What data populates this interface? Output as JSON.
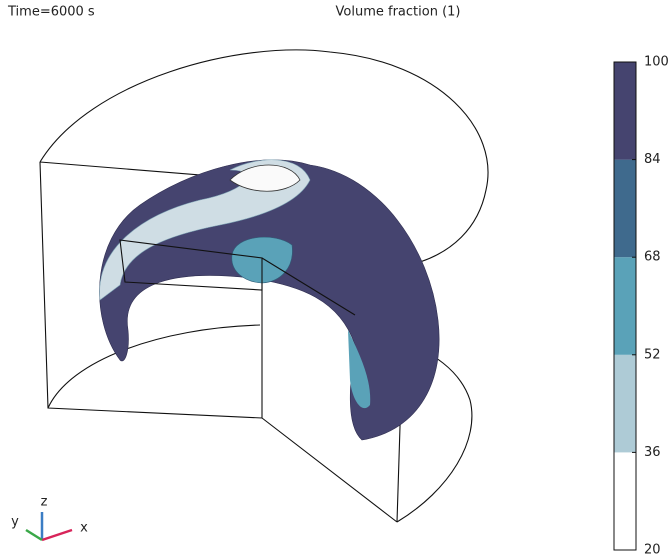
{
  "chart_data": {
    "type": "colormap",
    "title": "Volume fraction (1)",
    "annotation": "Time=6000 s",
    "ylim": [
      20,
      100
    ],
    "yticks": [
      20,
      36,
      52,
      68,
      84,
      100
    ],
    "colors": [
      "#ffffff",
      "#aecbd6",
      "#5aa2b8",
      "#3f6a8d",
      "#45446f"
    ],
    "axis_labels": [
      "x",
      "y",
      "z"
    ]
  }
}
